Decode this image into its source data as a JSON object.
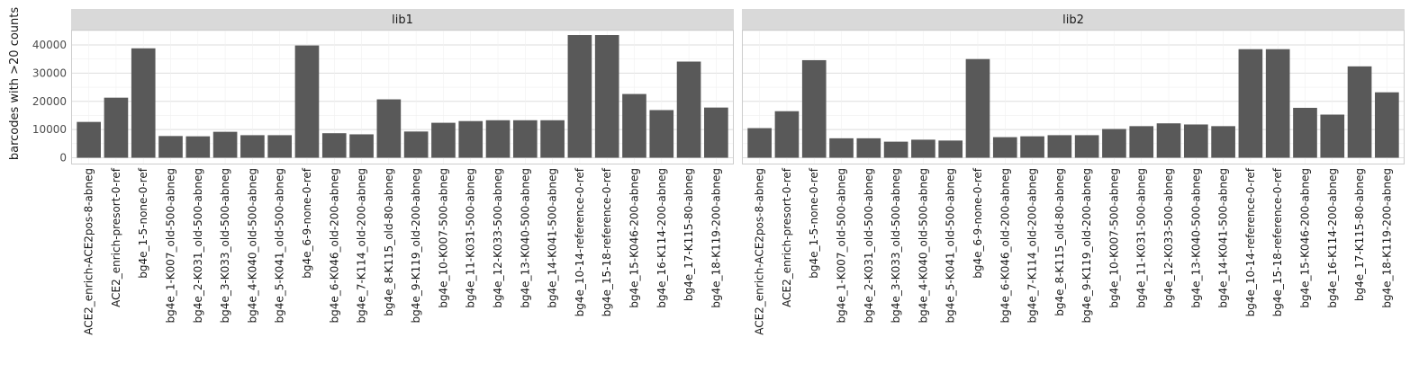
{
  "chart_data": {
    "type": "bar",
    "ylabel": "barcodes with >20 counts",
    "xlabel": "",
    "ylim": [
      0,
      45000
    ],
    "yticks": [
      0,
      10000,
      20000,
      30000,
      40000
    ],
    "grid": true,
    "bar_color": "#595959",
    "strip_color": "#d9d9d9",
    "grid_color": "#e0e0e0",
    "categories": [
      "ACE2_enrich-ACE2pos-8-abneg",
      "ACE2_enrich-presort-0-ref",
      "bg4e_1-5-none-0-ref",
      "bg4e_1-K007_old-500-abneg",
      "bg4e_2-K031_old-500-abneg",
      "bg4e_3-K033_old-500-abneg",
      "bg4e_4-K040_old-500-abneg",
      "bg4e_5-K041_old-500-abneg",
      "bg4e_6-9-none-0-ref",
      "bg4e_6-K046_old-200-abneg",
      "bg4e_7-K114_old-200-abneg",
      "bg4e_8-K115_old-80-abneg",
      "bg4e_9-K119_old-200-abneg",
      "bg4e_10-K007-500-abneg",
      "bg4e_11-K031-500-abneg",
      "bg4e_12-K033-500-abneg",
      "bg4e_13-K040-500-abneg",
      "bg4e_14-K041-500-abneg",
      "bg4e_10-14-reference-0-ref",
      "bg4e_15-18-reference-0-ref",
      "bg4e_15-K046-200-abneg",
      "bg4e_16-K114-200-abneg",
      "bg4e_17-K115-80-abneg",
      "bg4e_18-K119-200-abneg"
    ],
    "facets": [
      {
        "label": "lib1",
        "values": [
          12700,
          21300,
          38800,
          7700,
          7600,
          9200,
          8000,
          8000,
          39800,
          8700,
          8300,
          20700,
          9300,
          12400,
          13000,
          13300,
          13300,
          13300,
          43500,
          43500,
          22600,
          16900,
          34100,
          17800
        ]
      },
      {
        "label": "lib2",
        "values": [
          10500,
          16500,
          34600,
          6900,
          6900,
          5700,
          6400,
          6100,
          35000,
          7300,
          7600,
          8000,
          8000,
          10200,
          11200,
          12200,
          11800,
          11200,
          38500,
          38500,
          17700,
          15300,
          32400,
          23200
        ]
      }
    ]
  }
}
